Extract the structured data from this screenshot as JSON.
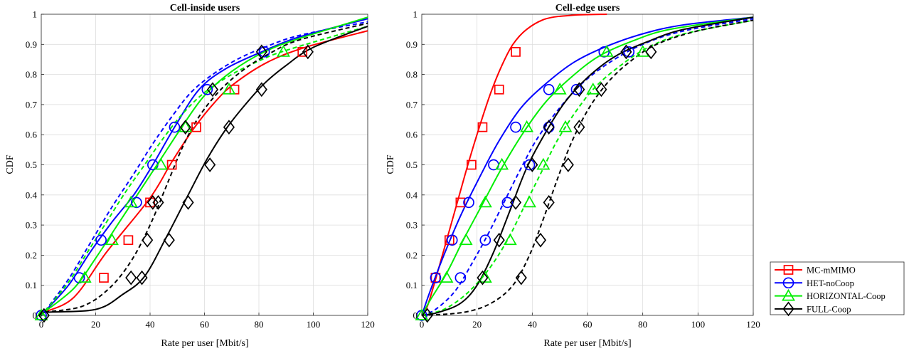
{
  "figure": {
    "legend": [
      {
        "label": "MC-mMIMO",
        "color": "#ff0000",
        "marker": "square"
      },
      {
        "label": "HET-noCoop",
        "color": "#0000ff",
        "marker": "circle"
      },
      {
        "label": "HORIZONTAL-Coop",
        "color": "#00ee00",
        "marker": "triangle"
      },
      {
        "label": "FULL-Coop",
        "color": "#000000",
        "marker": "diamond"
      }
    ],
    "legend_placement": "bottom-right, outside plots"
  },
  "chart_data": [
    {
      "type": "line",
      "title": "Cell-inside users",
      "xlabel": "Rate per user [Mbit/s]",
      "ylabel": "CDF",
      "xlim": [
        0,
        120
      ],
      "ylim": [
        0,
        1
      ],
      "xticks": [
        "0",
        "20",
        "40",
        "60",
        "80",
        "100",
        "120"
      ],
      "yticks": [
        "0",
        "0.1",
        "0.2",
        "0.3",
        "0.4",
        "0.5",
        "0.6",
        "0.7",
        "0.8",
        "0.9",
        "1"
      ],
      "grid": true,
      "series": [
        {
          "name": "MC-mMIMO",
          "color": "#ff0000",
          "marker": "square",
          "dashed": false,
          "x": [
            0,
            1,
            12,
            24,
            40,
            48,
            56,
            64,
            71,
            83,
            97,
            120
          ],
          "y": [
            0,
            0.01,
            0.06,
            0.21,
            0.39,
            0.51,
            0.62,
            0.71,
            0.77,
            0.84,
            0.89,
            0.945
          ]
        },
        {
          "name": "HET-noCoop",
          "color": "#0000ff",
          "marker": "circle",
          "dashed": false,
          "x": [
            0,
            1,
            10,
            18,
            26,
            34,
            41,
            49,
            58,
            68,
            81,
            95,
            120
          ],
          "y": [
            0,
            0.01,
            0.1,
            0.21,
            0.31,
            0.4,
            0.5,
            0.625,
            0.75,
            0.82,
            0.875,
            0.925,
            0.985
          ]
        },
        {
          "name": "HET-noCoop",
          "color": "#0000ff",
          "marker": "none",
          "dashed": true,
          "x": [
            0,
            1,
            10,
            18,
            26,
            34,
            41,
            48,
            55,
            63,
            72,
            82,
            95,
            120
          ],
          "y": [
            0,
            0.01,
            0.12,
            0.24,
            0.36,
            0.47,
            0.57,
            0.66,
            0.74,
            0.8,
            0.85,
            0.89,
            0.93,
            0.975
          ]
        },
        {
          "name": "HORIZONTAL-Coop",
          "color": "#00ee00",
          "marker": "triangle",
          "dashed": false,
          "x": [
            0,
            1,
            12,
            20,
            28,
            36,
            44,
            52,
            60,
            70,
            82,
            95,
            120
          ],
          "y": [
            0,
            0.01,
            0.09,
            0.19,
            0.3,
            0.41,
            0.52,
            0.63,
            0.73,
            0.81,
            0.875,
            0.92,
            0.99
          ]
        },
        {
          "name": "HORIZONTAL-Coop",
          "color": "#00ee00",
          "marker": "none",
          "dashed": true,
          "x": [
            0,
            1,
            10,
            17,
            24,
            31,
            38,
            45,
            52,
            60,
            70,
            80,
            90,
            120
          ],
          "y": [
            0,
            0.01,
            0.11,
            0.21,
            0.31,
            0.41,
            0.5,
            0.59,
            0.67,
            0.74,
            0.8,
            0.845,
            0.88,
            0.96
          ]
        },
        {
          "name": "FULL-Coop",
          "color": "#000000",
          "marker": "diamond",
          "dashed": false,
          "x": [
            0,
            1,
            20,
            30,
            38,
            46,
            54,
            61,
            68,
            75,
            82,
            90,
            100,
            120
          ],
          "y": [
            0,
            0.01,
            0.02,
            0.07,
            0.13,
            0.26,
            0.4,
            0.52,
            0.62,
            0.7,
            0.77,
            0.83,
            0.89,
            0.96
          ]
        },
        {
          "name": "FULL-Coop",
          "color": "#000000",
          "marker": "none",
          "dashed": true,
          "x": [
            0,
            1,
            15,
            25,
            33,
            40,
            46,
            52,
            58,
            66,
            75,
            84,
            95,
            120
          ],
          "y": [
            0,
            0.01,
            0.03,
            0.09,
            0.18,
            0.3,
            0.43,
            0.56,
            0.66,
            0.75,
            0.82,
            0.87,
            0.915,
            0.97
          ]
        }
      ],
      "markers": [
        {
          "series": 0,
          "x": [
            23,
            32,
            40,
            48,
            57,
            71,
            96
          ],
          "y": [
            0.125,
            0.25,
            0.375,
            0.5,
            0.625,
            0.75,
            0.875
          ]
        },
        {
          "series": 1,
          "x": [
            0,
            14,
            22,
            35,
            41,
            49,
            61,
            82
          ],
          "y": [
            0,
            0.125,
            0.25,
            0.375,
            0.5,
            0.625,
            0.75,
            0.875
          ]
        },
        {
          "series": 3,
          "x": [
            0,
            16,
            26,
            33,
            44,
            53,
            69,
            89
          ],
          "y": [
            0,
            0.125,
            0.25,
            0.375,
            0.5,
            0.625,
            0.75,
            0.875
          ]
        },
        {
          "series": 5,
          "x": [
            1,
            33,
            39,
            41,
            47,
            54,
            62,
            81,
            98
          ],
          "y": [
            0,
            0.125,
            0.25,
            0.375,
            0.25,
            0.375,
            0.5,
            0.75,
            0.875
          ]
        },
        {
          "series": 6,
          "x": [
            37,
            43,
            53,
            63,
            69,
            81
          ],
          "y": [
            0.125,
            0.375,
            0.625,
            0.75,
            0.625,
            0.875
          ]
        }
      ]
    },
    {
      "type": "line",
      "title": "Cell-edge users",
      "xlabel": "Rate per user [Mbit/s]",
      "ylabel": "CDF",
      "xlim": [
        0,
        120
      ],
      "ylim": [
        0,
        1
      ],
      "xticks": [
        "0",
        "20",
        "40",
        "60",
        "80",
        "100",
        "120"
      ],
      "yticks": [
        "0",
        "0.1",
        "0.2",
        "0.3",
        "0.4",
        "0.5",
        "0.6",
        "0.7",
        "0.8",
        "0.9",
        "1"
      ],
      "grid": true,
      "series": [
        {
          "name": "MC-mMIMO",
          "color": "#ff0000",
          "marker": "square",
          "dashed": false,
          "x": [
            0,
            2,
            5,
            9,
            13,
            17,
            21,
            25,
            29,
            33,
            38,
            45,
            55,
            67
          ],
          "y": [
            0,
            0.03,
            0.12,
            0.25,
            0.38,
            0.51,
            0.63,
            0.74,
            0.83,
            0.9,
            0.95,
            0.985,
            0.997,
            1
          ]
        },
        {
          "name": "HET-noCoop",
          "color": "#0000ff",
          "marker": "circle",
          "dashed": false,
          "x": [
            0,
            3,
            8,
            14,
            21,
            28,
            36,
            45,
            55,
            66,
            80,
            95,
            120
          ],
          "y": [
            0,
            0.08,
            0.2,
            0.33,
            0.46,
            0.58,
            0.69,
            0.77,
            0.84,
            0.89,
            0.935,
            0.965,
            0.99
          ]
        },
        {
          "name": "HET-noCoop",
          "color": "#0000ff",
          "marker": "none",
          "dashed": true,
          "x": [
            0,
            5,
            12,
            18,
            24,
            30,
            36,
            42,
            50,
            58,
            68,
            80,
            95,
            120
          ],
          "y": [
            0,
            0.02,
            0.08,
            0.17,
            0.27,
            0.38,
            0.49,
            0.59,
            0.69,
            0.77,
            0.84,
            0.9,
            0.945,
            0.985
          ]
        },
        {
          "name": "HORIZONTAL-Coop",
          "color": "#00ee00",
          "marker": "triangle",
          "dashed": false,
          "x": [
            0,
            3,
            9,
            15,
            22,
            29,
            37,
            45,
            54,
            64,
            76,
            90,
            120
          ],
          "y": [
            0,
            0.05,
            0.14,
            0.25,
            0.37,
            0.49,
            0.61,
            0.71,
            0.79,
            0.86,
            0.91,
            0.95,
            0.99
          ]
        },
        {
          "name": "HORIZONTAL-Coop",
          "color": "#00ee00",
          "marker": "none",
          "dashed": true,
          "x": [
            0,
            8,
            16,
            24,
            31,
            37,
            43,
            49,
            56,
            63,
            72,
            82,
            95,
            120
          ],
          "y": [
            0,
            0.02,
            0.07,
            0.15,
            0.25,
            0.36,
            0.47,
            0.58,
            0.68,
            0.76,
            0.83,
            0.89,
            0.935,
            0.98
          ]
        },
        {
          "name": "FULL-Coop",
          "color": "#000000",
          "marker": "diamond",
          "dashed": false,
          "x": [
            0,
            6,
            14,
            20,
            26,
            32,
            38,
            45,
            52,
            60,
            70,
            82,
            95,
            120
          ],
          "y": [
            0,
            0.01,
            0.04,
            0.1,
            0.21,
            0.35,
            0.49,
            0.61,
            0.71,
            0.79,
            0.86,
            0.91,
            0.95,
            0.99
          ]
        },
        {
          "name": "FULL-Coop",
          "color": "#000000",
          "marker": "none",
          "dashed": true,
          "x": [
            0,
            15,
            25,
            33,
            39,
            44,
            49,
            54,
            60,
            67,
            75,
            85,
            100,
            120
          ],
          "y": [
            0,
            0.01,
            0.04,
            0.1,
            0.2,
            0.32,
            0.45,
            0.57,
            0.68,
            0.77,
            0.84,
            0.9,
            0.945,
            0.98
          ]
        }
      ],
      "markers": [
        {
          "series": 0,
          "x": [
            5,
            10,
            14,
            18,
            22,
            28,
            34
          ],
          "y": [
            0.125,
            0.25,
            0.375,
            0.5,
            0.625,
            0.75,
            0.875
          ]
        },
        {
          "series": 1,
          "x": [
            0,
            5,
            11,
            17,
            26,
            34,
            46,
            66,
            75
          ],
          "y": [
            0,
            0.125,
            0.25,
            0.375,
            0.5,
            0.625,
            0.75,
            0.875,
            0.875
          ]
        },
        {
          "series": 2,
          "x": [
            14,
            23,
            31,
            39,
            46,
            56
          ],
          "y": [
            0.125,
            0.25,
            0.375,
            0.5,
            0.625,
            0.75
          ]
        },
        {
          "series": 3,
          "x": [
            0,
            9,
            16,
            23,
            29,
            38,
            50,
            67
          ],
          "y": [
            0,
            0.125,
            0.25,
            0.375,
            0.5,
            0.625,
            0.75,
            0.875
          ]
        },
        {
          "series": 4,
          "x": [
            23,
            32,
            39,
            44,
            52,
            62,
            80
          ],
          "y": [
            0.125,
            0.25,
            0.375,
            0.5,
            0.625,
            0.75,
            0.875
          ]
        },
        {
          "series": 5,
          "x": [
            2,
            22,
            28,
            34,
            40,
            46,
            57,
            74
          ],
          "y": [
            0,
            0.125,
            0.25,
            0.375,
            0.5,
            0.625,
            0.75,
            0.875
          ]
        },
        {
          "series": 6,
          "x": [
            36,
            43,
            46,
            53,
            57,
            65,
            83
          ],
          "y": [
            0.125,
            0.25,
            0.375,
            0.5,
            0.625,
            0.75,
            0.875
          ]
        }
      ]
    }
  ]
}
